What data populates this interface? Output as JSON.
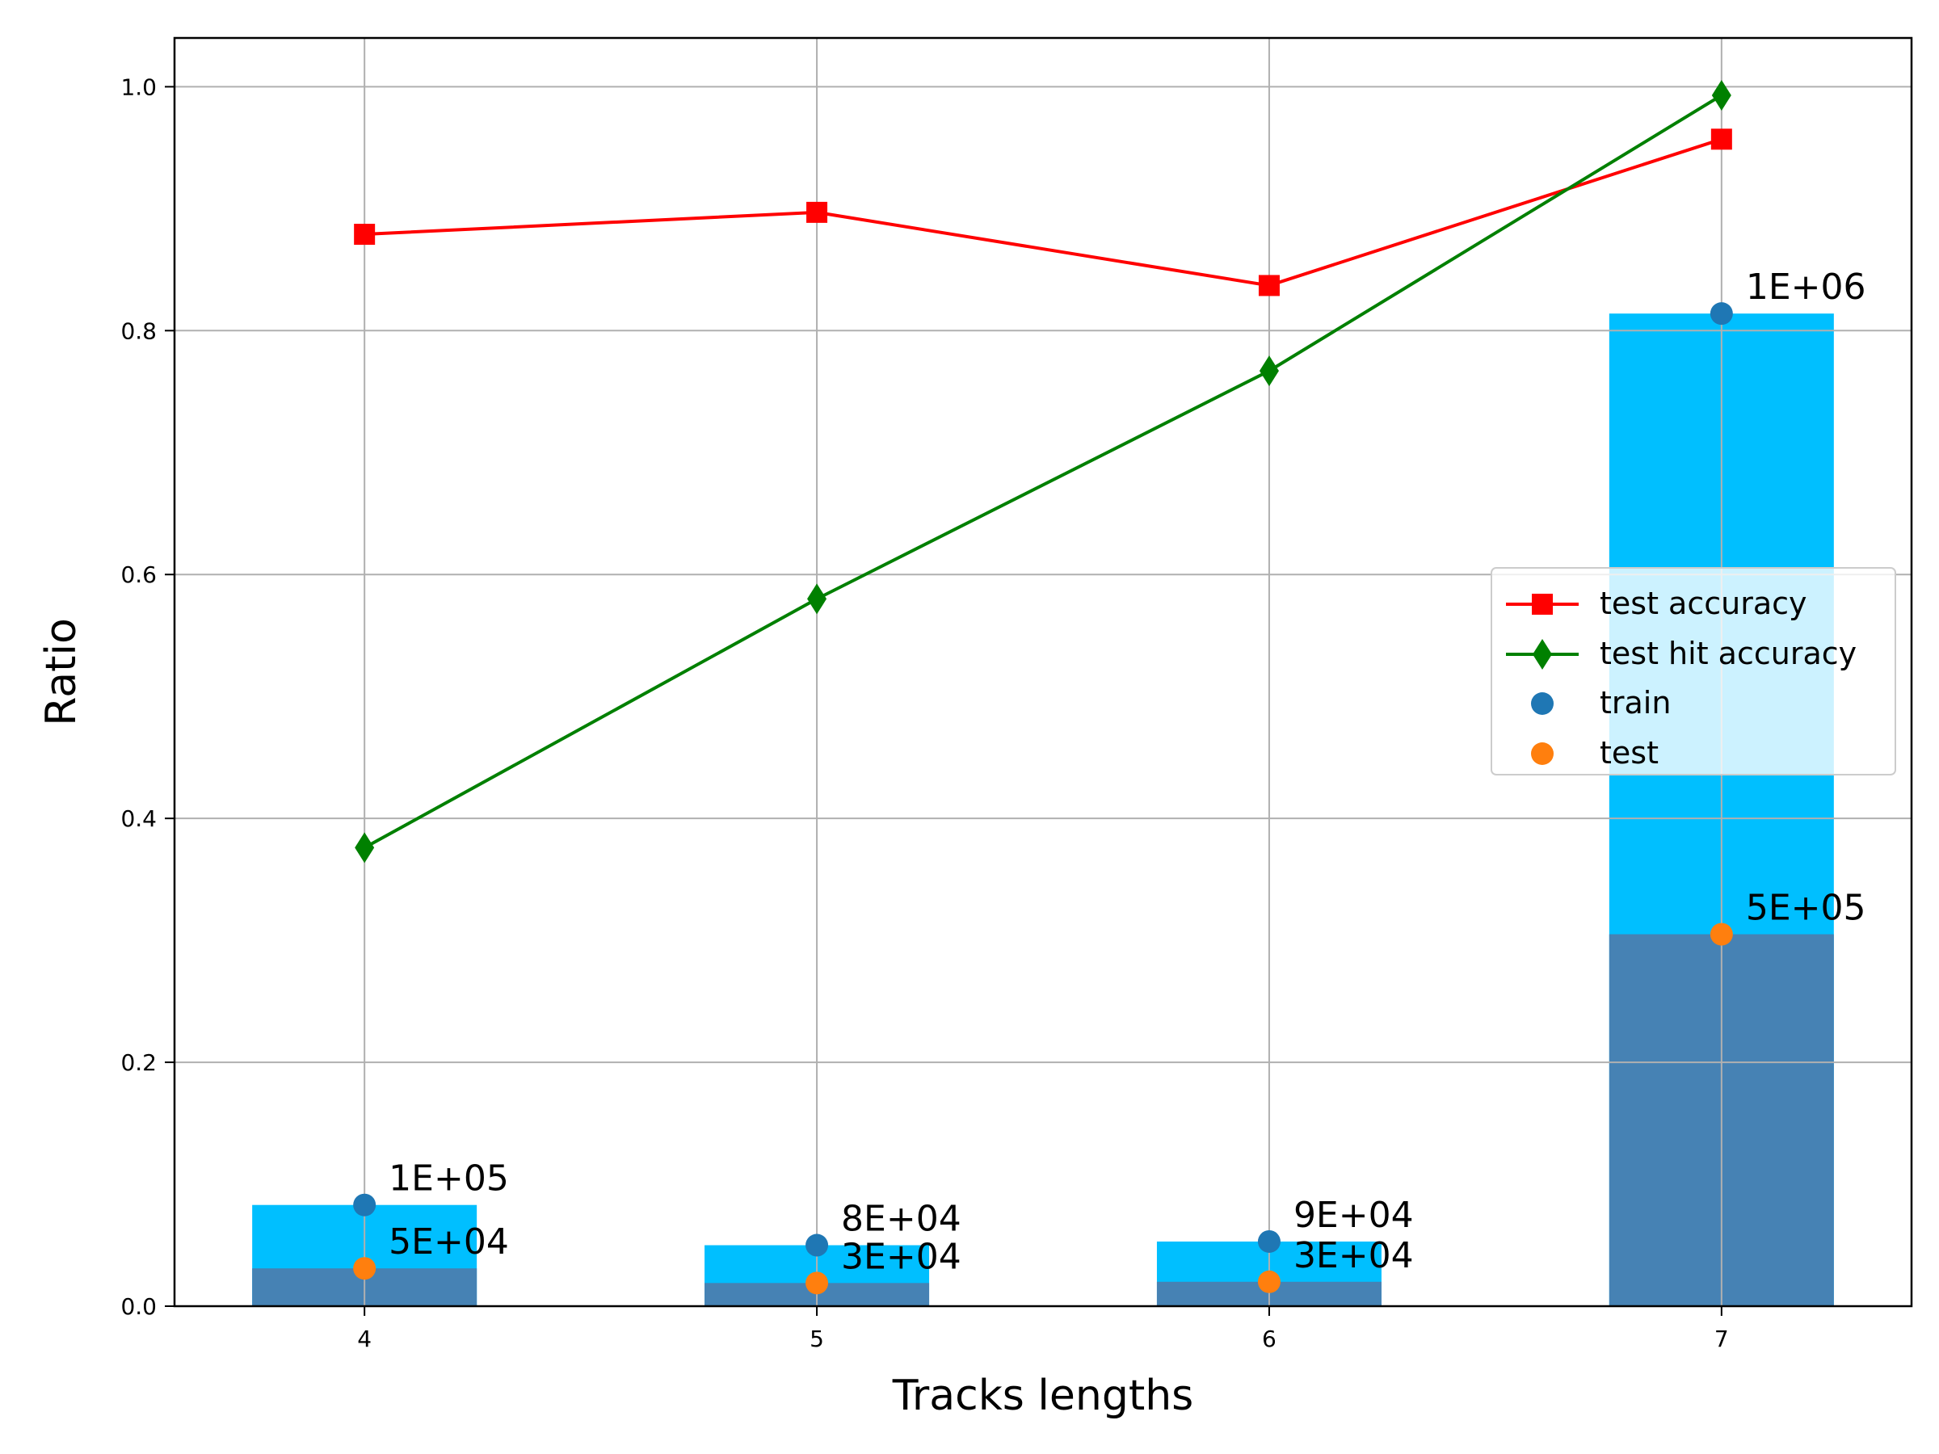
{
  "chart_data": {
    "type": "bar",
    "xlabel": "Tracks lengths",
    "ylabel": "Ratio",
    "categories": [
      "4",
      "5",
      "6",
      "7"
    ],
    "x": [
      4,
      5,
      6,
      7
    ],
    "xlim": [
      3.58,
      7.42
    ],
    "ylim": [
      0,
      1.04
    ],
    "yticks": [
      "0.0",
      "0.2",
      "0.4",
      "0.6",
      "0.8",
      "1.0"
    ],
    "grid": true,
    "legend_position": "center-right",
    "bars": [
      {
        "name": "train",
        "color": "#00bfff",
        "values": [
          0.083,
          0.05,
          0.053,
          0.814
        ]
      },
      {
        "name": "test",
        "color": "#4682b4",
        "values": [
          0.031,
          0.019,
          0.02,
          0.305
        ]
      }
    ],
    "series": [
      {
        "name": "test accuracy",
        "type": "line",
        "marker": "square",
        "color": "#ff0000",
        "values": [
          0.879,
          0.897,
          0.837,
          0.957
        ]
      },
      {
        "name": "test hit accuracy",
        "type": "line",
        "marker": "diamond",
        "color": "#008000",
        "values": [
          0.376,
          0.58,
          0.767,
          0.993
        ]
      },
      {
        "name": "train",
        "type": "scatter",
        "color": "#1f77b4",
        "values": [
          0.083,
          0.05,
          0.053,
          0.814
        ],
        "labels": [
          "1E+05",
          "8E+04",
          "9E+04",
          "1E+06"
        ]
      },
      {
        "name": "test",
        "type": "scatter",
        "color": "#ff7f0e",
        "values": [
          0.031,
          0.019,
          0.02,
          0.305
        ],
        "labels": [
          "5E+04",
          "3E+04",
          "3E+04",
          "5E+05"
        ]
      }
    ]
  }
}
